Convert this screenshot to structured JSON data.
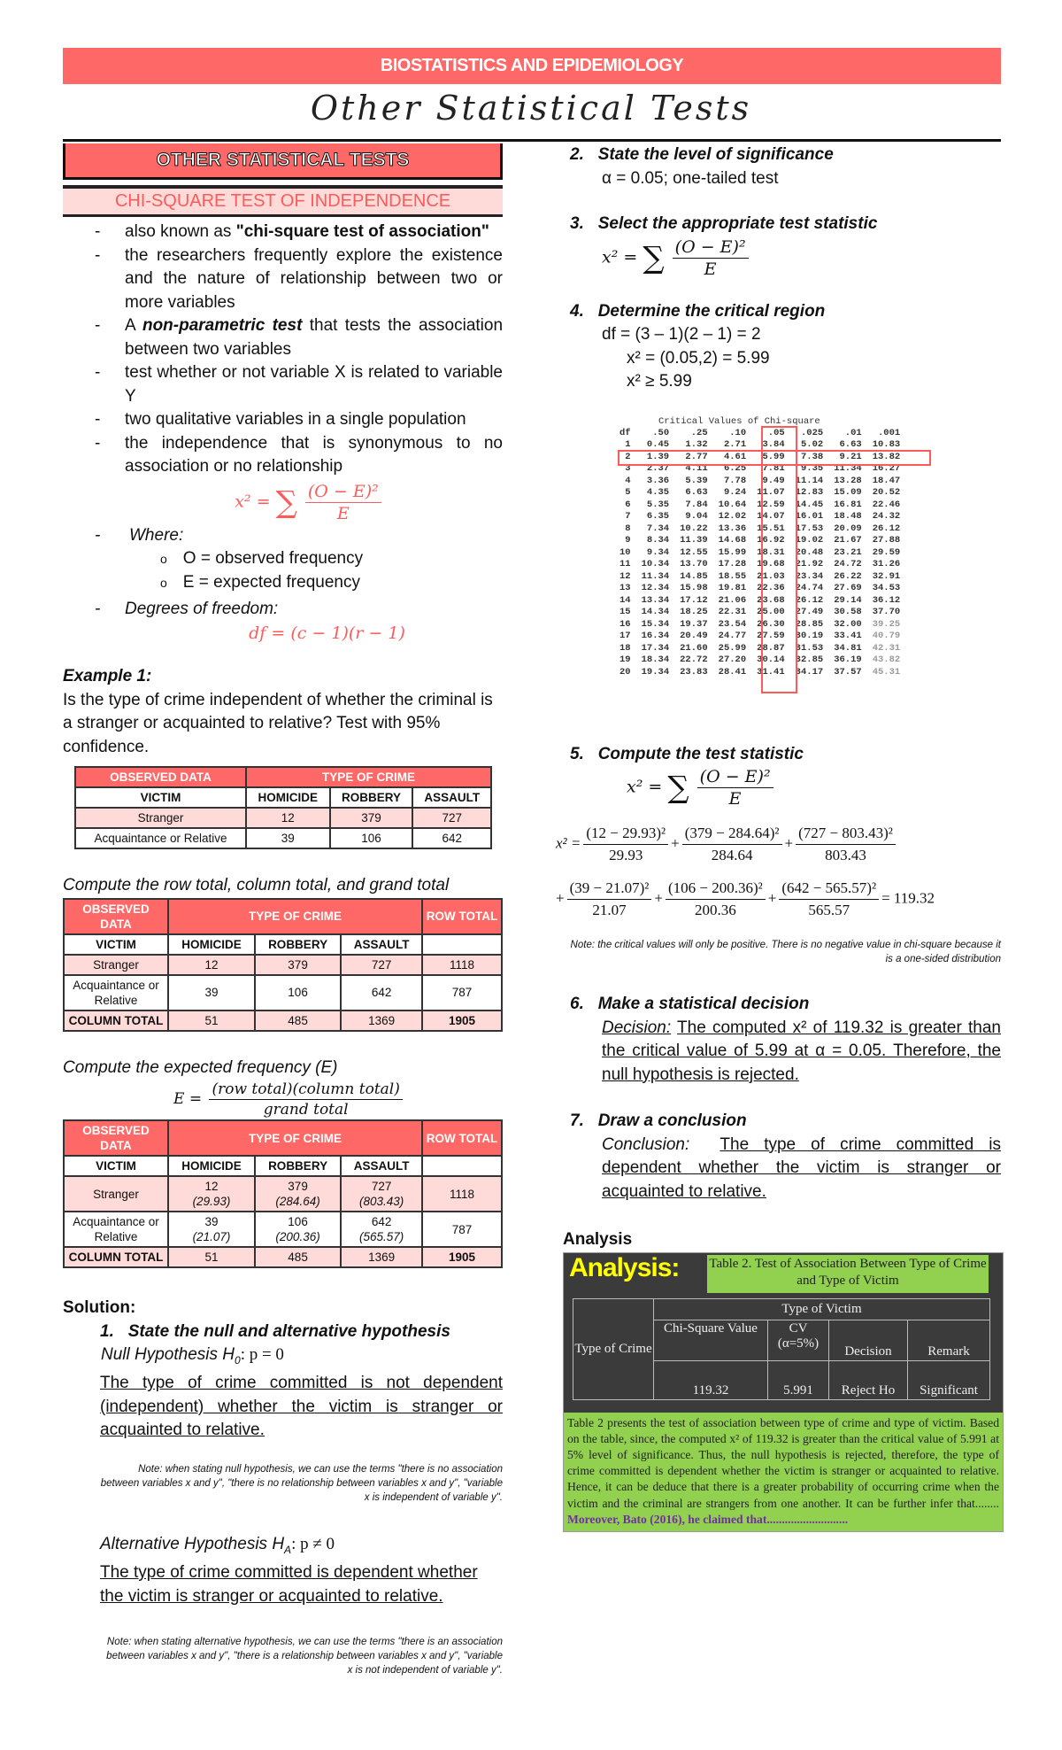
{
  "header": {
    "course": "BIOSTATISTICS AND EPIDEMIOLOGY",
    "title": "Other Statistical Tests"
  },
  "left": {
    "section_box": "OTHER STATISTICAL TESTS",
    "subsection": "CHI-SQUARE TEST OF INDEPENDENCE",
    "bullets": [
      {
        "pre": "also known as ",
        "bold": "\"chi-square test of association\"",
        "post": ""
      },
      {
        "pre": "the researchers frequently explore the existence and the nature of relationship between two or more variables",
        "bold": "",
        "post": ""
      },
      {
        "pre": "A ",
        "bold": "non-parametric test",
        "post": " that tests the association between two variables"
      },
      {
        "pre": "test whether or not variable X is related to variable Y",
        "bold": "",
        "post": ""
      },
      {
        "pre": "two qualitative variables in a single population",
        "bold": "",
        "post": ""
      },
      {
        "pre": "the independence that is synonymous to no association or no relationship",
        "bold": "",
        "post": ""
      }
    ],
    "formula": {
      "lhs": "x² =",
      "sum": "∑",
      "num": "(O − E)²",
      "den": "E"
    },
    "where_label": "Where:",
    "where_items": [
      "O = observed frequency",
      "E = expected frequency"
    ],
    "bullet_marker": "o",
    "dof_label": "Degrees of freedom:",
    "dof_formula": "df = (c − 1)(r − 1)",
    "example_title": "Example 1:",
    "example_text": "Is the type of crime independent of whether the criminal is a stranger or acquainted to relative? Test with 95% confidence.",
    "table1": {
      "header": [
        "OBSERVED DATA",
        "TYPE OF CRIME"
      ],
      "cols": [
        "VICTIM",
        "HOMICIDE",
        "ROBBERY",
        "ASSAULT"
      ],
      "rows": [
        [
          "Stranger",
          "12",
          "379",
          "727"
        ],
        [
          "Acquaintance or Relative",
          "39",
          "106",
          "642"
        ]
      ]
    },
    "row_total_caption": "Compute the row total, column total, and grand total",
    "table2": {
      "header": [
        "OBSERVED DATA",
        "TYPE OF CRIME",
        "ROW TOTAL"
      ],
      "cols": [
        "VICTIM",
        "HOMICIDE",
        "ROBBERY",
        "ASSAULT",
        ""
      ],
      "rows": [
        [
          "Stranger",
          "12",
          "379",
          "727",
          "1118"
        ],
        [
          "Acquaintance or Relative",
          "39",
          "106",
          "642",
          "787"
        ],
        [
          "COLUMN TOTAL",
          "51",
          "485",
          "1369",
          "1905"
        ]
      ]
    },
    "expected_caption": "Compute the expected frequency (E)",
    "expected_formula": {
      "lhs": "E =",
      "num": "(row total)(column total)",
      "den": "grand total"
    },
    "table3": {
      "header": [
        "OBSERVED DATA",
        "TYPE OF CRIME",
        "ROW TOTAL"
      ],
      "cols": [
        "VICTIM",
        "HOMICIDE",
        "ROBBERY",
        "ASSAULT",
        ""
      ],
      "rows": [
        [
          "Stranger",
          "12",
          "379",
          "727",
          "1118"
        ],
        [
          "Acquaintance or Relative",
          "39",
          "106",
          "642",
          "787"
        ],
        [
          "COLUMN TOTAL",
          "51",
          "485",
          "1369",
          "1905"
        ]
      ],
      "expected": [
        [
          "(29.93)",
          "(284.64)",
          "(803.43)"
        ],
        [
          "(21.07)",
          "(200.36)",
          "(565.57)"
        ]
      ]
    },
    "solution_title": "Solution:",
    "step1": {
      "num": "1.",
      "title": "State the null and alternative hypothesis",
      "null_label": "Null Hypothesis H",
      "null_sub": "0",
      "null_expr": ": p = 0",
      "null_text": "The type of crime committed is not dependent (independent) whether the victim is stranger or acquainted to relative.",
      "null_note": "Note: when stating null hypothesis, we can use the terms \"there is no association between variables x and y\", \"there is no relationship between variables x and y\", \"variable x is independent of variable y\".",
      "alt_label": "Alternative Hypothesis H",
      "alt_sub": "A",
      "alt_expr": ": p ≠ 0",
      "alt_text": "The type of crime committed is dependent whether the victim is stranger or acquainted to relative.",
      "alt_note": "Note: when stating alternative hypothesis, we can use the terms \"there is an association between variables x and y\", \"there is a relationship between variables x and y\", \"variable x is not independent of variable y\"."
    }
  },
  "right": {
    "step2": {
      "num": "2.",
      "title": "State the level of significance",
      "text": "α = 0.05; one-tailed test"
    },
    "step3": {
      "num": "3.",
      "title": "Select the appropriate test statistic"
    },
    "step4": {
      "num": "4.",
      "title": "Determine the critical region",
      "lines": [
        "df = (3 – 1)(2 – 1) = 2",
        "x² = (0.05,2) = 5.99",
        "x² ≥ 5.99"
      ]
    },
    "critical_table": {
      "title": "Critical Values of Chi-square",
      "cols": [
        "df",
        ".50",
        ".25",
        ".10",
        ".05",
        ".025",
        ".01",
        ".001"
      ],
      "highlight_row_df": "2",
      "highlight_col": ".05",
      "rows": [
        [
          "1",
          "0.45",
          "1.32",
          "2.71",
          "3.84",
          "5.02",
          "6.63",
          "10.83"
        ],
        [
          "2",
          "1.39",
          "2.77",
          "4.61",
          "5.99",
          "7.38",
          "9.21",
          "13.82"
        ],
        [
          "3",
          "2.37",
          "4.11",
          "6.25",
          "7.81",
          "9.35",
          "11.34",
          "16.27"
        ],
        [
          "4",
          "3.36",
          "5.39",
          "7.78",
          "9.49",
          "11.14",
          "13.28",
          "18.47"
        ],
        [
          "5",
          "4.35",
          "6.63",
          "9.24",
          "11.07",
          "12.83",
          "15.09",
          "20.52"
        ],
        [
          "6",
          "5.35",
          "7.84",
          "10.64",
          "12.59",
          "14.45",
          "16.81",
          "22.46"
        ],
        [
          "7",
          "6.35",
          "9.04",
          "12.02",
          "14.07",
          "16.01",
          "18.48",
          "24.32"
        ],
        [
          "8",
          "7.34",
          "10.22",
          "13.36",
          "15.51",
          "17.53",
          "20.09",
          "26.12"
        ],
        [
          "9",
          "8.34",
          "11.39",
          "14.68",
          "16.92",
          "19.02",
          "21.67",
          "27.88"
        ],
        [
          "10",
          "9.34",
          "12.55",
          "15.99",
          "18.31",
          "20.48",
          "23.21",
          "29.59"
        ],
        [
          "11",
          "10.34",
          "13.70",
          "17.28",
          "19.68",
          "21.92",
          "24.72",
          "31.26"
        ],
        [
          "12",
          "11.34",
          "14.85",
          "18.55",
          "21.03",
          "23.34",
          "26.22",
          "32.91"
        ],
        [
          "13",
          "12.34",
          "15.98",
          "19.81",
          "22.36",
          "24.74",
          "27.69",
          "34.53"
        ],
        [
          "14",
          "13.34",
          "17.12",
          "21.06",
          "23.68",
          "26.12",
          "29.14",
          "36.12"
        ],
        [
          "15",
          "14.34",
          "18.25",
          "22.31",
          "25.00",
          "27.49",
          "30.58",
          "37.70"
        ],
        [
          "16",
          "15.34",
          "19.37",
          "23.54",
          "26.30",
          "28.85",
          "32.00",
          "39.25"
        ],
        [
          "17",
          "16.34",
          "20.49",
          "24.77",
          "27.59",
          "30.19",
          "33.41",
          "40.79"
        ],
        [
          "18",
          "17.34",
          "21.60",
          "25.99",
          "28.87",
          "31.53",
          "34.81",
          "42.31"
        ],
        [
          "19",
          "18.34",
          "22.72",
          "27.20",
          "30.14",
          "32.85",
          "36.19",
          "43.82"
        ],
        [
          "20",
          "19.34",
          "23.83",
          "28.41",
          "31.41",
          "34.17",
          "37.57",
          "45.31"
        ]
      ]
    },
    "step5": {
      "num": "5.",
      "title": "Compute the test statistic",
      "terms": [
        {
          "num": "(12 − 29.93)²",
          "den": "29.93"
        },
        {
          "num": "(379 − 284.64)²",
          "den": "284.64"
        },
        {
          "num": "(727 − 803.43)²",
          "den": "803.43"
        },
        {
          "num": "(39 − 21.07)²",
          "den": "21.07"
        },
        {
          "num": "(106 − 200.36)²",
          "den": "200.36"
        },
        {
          "num": "(642 − 565.57)²",
          "den": "565.57"
        }
      ],
      "result": "= 119.32",
      "note": "Note: the critical values will only be positive. There is no negative value in chi-square because it is a one-sided distribution"
    },
    "step6": {
      "num": "6.",
      "title": "Make a statistical decision",
      "label": "Decision:",
      "text": "The computed x² of 119.32 is greater than the critical value of 5.99 at α = 0.05. Therefore, the null hypothesis is rejected."
    },
    "step7": {
      "num": "7.",
      "title": "Draw a conclusion",
      "label": "Conclusion:",
      "text": "The type of crime committed is dependent whether the victim is stranger or acquainted to relative."
    },
    "analysis": {
      "label": "Analysis",
      "banner": "Analysis:",
      "table_title": "Table 2. Test of Association Between Type of Crime and Type of Victim",
      "row_header": "Type of Crime",
      "group_header": "Type of Victim",
      "cols": [
        "Chi-Square Value",
        "CV (α=5%)",
        "Decision",
        "Remark"
      ],
      "values": [
        "119.32",
        "5.991",
        "Reject Ho",
        "Significant"
      ],
      "paragraph": "Table 2 presents the test of association between type of crime and type of victim.  Based on the table, since, the computed x² of 119.32 is greater than the critical value of 5.991 at 5% level of significance.  Thus, the null hypothesis is rejected, therefore, the type of crime committed is dependent whether the victim is stranger or acquainted to relative. Hence, it can be deduce that there is a greater probability of occurring crime when the victim and the criminal are strangers from one another. It can be further infer that........ ",
      "highlight": "Moreover, Bato (2016), he claimed that..........................."
    }
  },
  "colors": {
    "accent": "#fe6867",
    "accent_light": "#fedad9",
    "analysis_green": "#92d050",
    "analysis_dark": "#3b3b3b",
    "analysis_yellow": "#ffff00",
    "highlight_purple": "#7030a0"
  }
}
